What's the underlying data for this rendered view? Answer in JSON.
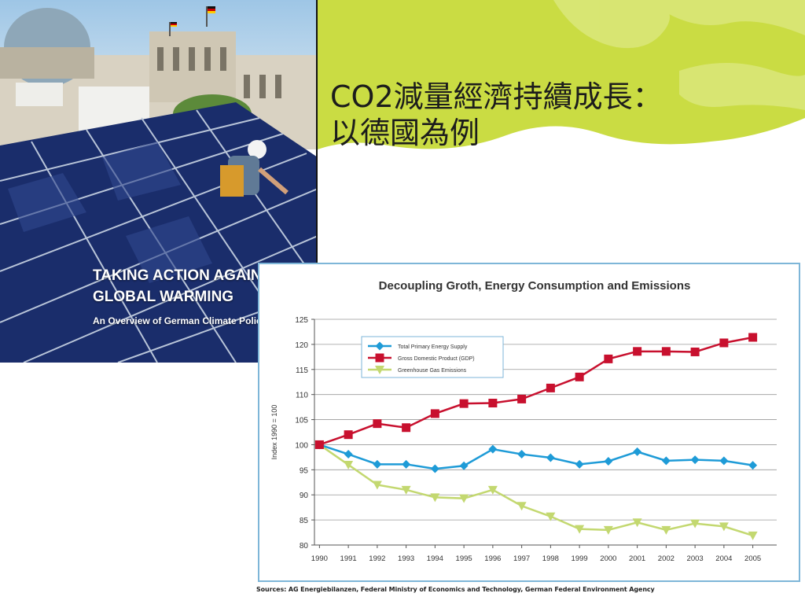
{
  "slide": {
    "title_line1": "CO2減量經濟持續成長：",
    "title_line2": "以德國為例"
  },
  "photo": {
    "headline_line1": "TAKING ACTION AGAINS",
    "headline_line2": "GLOBAL WARMING",
    "subline": "An Overview of German Climate Polic"
  },
  "source_note": "Sources: AG Energiebilanzen, Federal Ministry of Economics and Technology, German Federal Environment Agency",
  "colors": {
    "green_bg": "#cadc43",
    "tpes": "#1e9bd7",
    "gdp": "#c8102e",
    "ghg": "#c3d870",
    "chart_border": "#7eb6d8"
  },
  "chart_data": {
    "type": "line",
    "title": "Decoupling Groth, Energy Consumption and Emissions",
    "xlabel": "",
    "ylabel": "Index 1990 = 100",
    "x": [
      "1990",
      "1991",
      "1992",
      "1993",
      "1994",
      "1995",
      "1996",
      "1997",
      "1998",
      "1999",
      "2000",
      "2001",
      "2002",
      "2003",
      "2004",
      "2005"
    ],
    "ylim": [
      80,
      125
    ],
    "yticks": [
      80,
      85,
      90,
      95,
      100,
      105,
      110,
      115,
      120,
      125
    ],
    "grid": true,
    "legend_position": "top-left",
    "series": [
      {
        "name": "Total Primary Energy Supply",
        "marker": "diamond",
        "color": "#1e9bd7",
        "values": [
          100,
          98.1,
          96.1,
          96.1,
          95.2,
          95.8,
          99.1,
          98.1,
          97.4,
          96.1,
          96.7,
          98.6,
          96.8,
          97.0,
          96.8,
          95.9
        ]
      },
      {
        "name": "Gross Domestic Product (GDP)",
        "marker": "square",
        "color": "#c8102e",
        "values": [
          100,
          102.0,
          104.2,
          103.4,
          106.2,
          108.2,
          108.3,
          109.1,
          111.3,
          113.5,
          117.1,
          118.6,
          118.6,
          118.5,
          120.3,
          121.4
        ]
      },
      {
        "name": "Greenhouse Gas Emissions",
        "marker": "triangle",
        "color": "#c3d870",
        "values": [
          100,
          96.0,
          92.0,
          91.0,
          89.5,
          89.3,
          91.0,
          87.8,
          85.7,
          83.2,
          83.0,
          84.5,
          83.0,
          84.3,
          83.7,
          81.9
        ]
      }
    ]
  }
}
